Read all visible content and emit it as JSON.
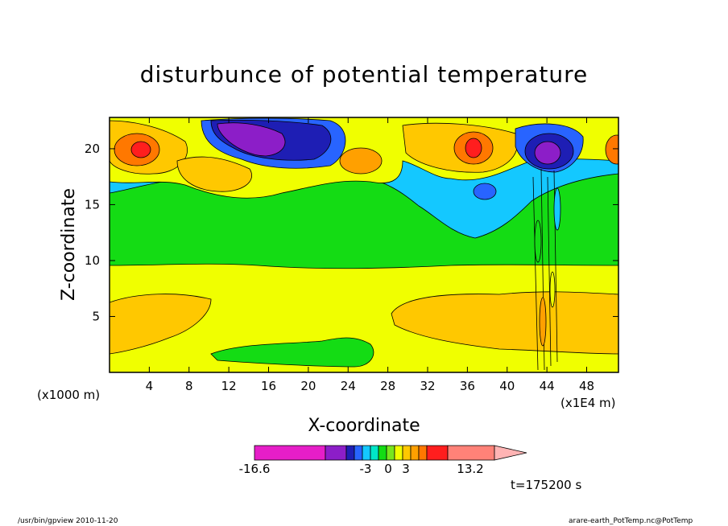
{
  "chart_data": {
    "type": "heatmap",
    "title": "disturbunce of potential temperature",
    "xlabel": "X-coordinate",
    "ylabel": "Z-coordinate",
    "x_unit_left": "(x1000 m)",
    "x_unit_right": "(x1E4 m)",
    "xlim": [
      0,
      51.2
    ],
    "ylim": [
      0,
      22.8
    ],
    "x_ticks": [
      4,
      8,
      12,
      16,
      20,
      24,
      28,
      32,
      36,
      40,
      44,
      48
    ],
    "y_ticks": [
      5,
      10,
      15,
      20
    ],
    "colorbar": {
      "min_label": "-16.6",
      "labels": [
        "-16.6",
        "-3",
        "0",
        "3",
        "13.2"
      ],
      "colors": [
        "#e61ec8",
        "#8c1ec8",
        "#1e1eb4",
        "#2864ff",
        "#14c8ff",
        "#00e6c8",
        "#14dc14",
        "#78e61e",
        "#f0ff00",
        "#ffc800",
        "#ffa000",
        "#ff7800",
        "#ff1e1e",
        "#ff8278",
        "#ffb4b4"
      ]
    },
    "regions_description": [
      {
        "zone": "lower layer z<9.5",
        "level": "0 to +1 (yellow), orange patches near x 0-10 and 30-51"
      },
      {
        "zone": "middle layer z 10-16",
        "level": "-1 to 0 (green)"
      },
      {
        "zone": "upper layer z 17-23",
        "level": "strong negative (blue/purple) near x 10-24 and 42-46; positive (orange/red) near x 0-6 and 30-38"
      }
    ],
    "time_label": "t=175200 s"
  },
  "footer": {
    "left": "/usr/bin/gpview  2010-11-20",
    "right": "arare-earth_PotTemp.nc@PotTemp"
  }
}
